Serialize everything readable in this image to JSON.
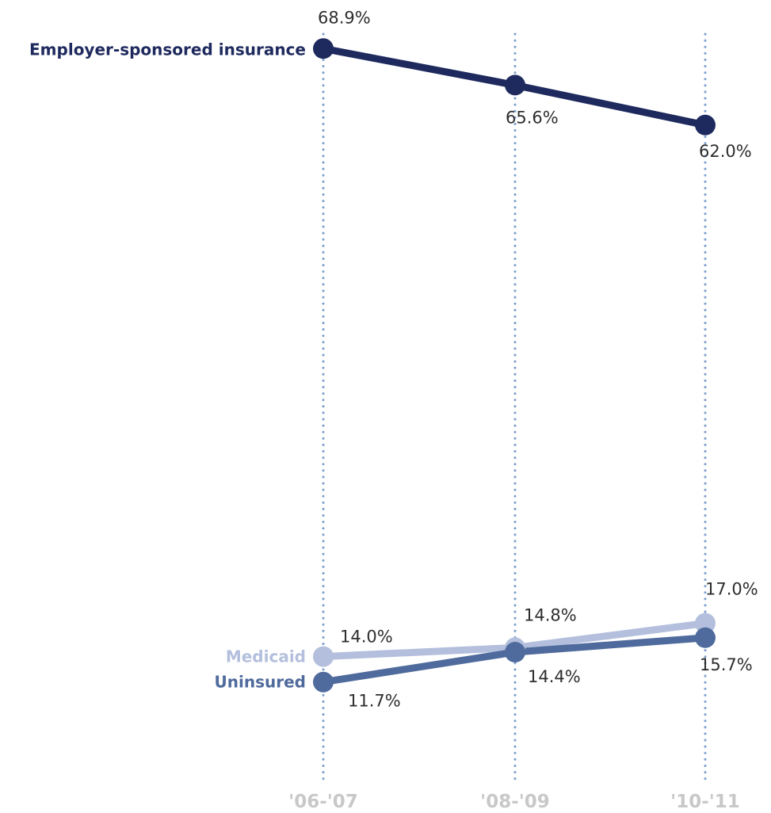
{
  "chart_data": {
    "type": "line",
    "categories": [
      "'06-'07",
      "'08-'09",
      "'10-'11"
    ],
    "ylim": [
      0,
      75
    ],
    "grid": "vertical dotted lines at each category",
    "legend": "series names labeled at left end of lines",
    "series": [
      {
        "name": "Employer-sponsored insurance",
        "values": [
          68.9,
          65.6,
          62.0
        ],
        "labels": [
          "68.9%",
          "65.6%",
          "62.0%"
        ],
        "color": "#1e2a5e"
      },
      {
        "name": "Medicaid",
        "values": [
          14.0,
          14.8,
          17.0
        ],
        "labels": [
          "14.0%",
          "14.8%",
          "17.0%"
        ],
        "color": "#b3bfdc"
      },
      {
        "name": "Uninsured",
        "values": [
          11.7,
          14.4,
          15.7
        ],
        "labels": [
          "11.7%",
          "14.4%",
          "15.7%"
        ],
        "color": "#4f6a9c"
      }
    ],
    "gridline_color": "#7f9fcb",
    "tick_color": "#c8c8c8"
  }
}
